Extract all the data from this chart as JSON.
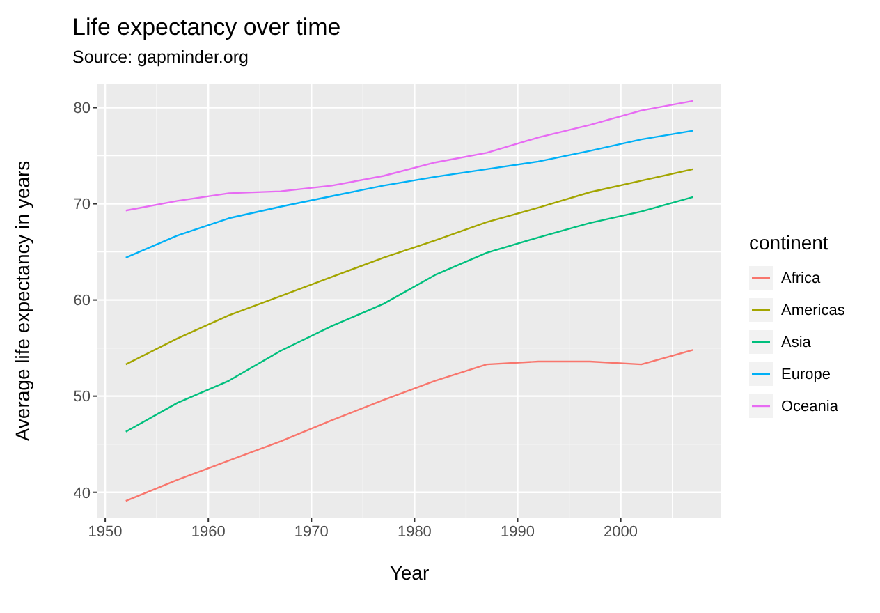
{
  "chart_data": {
    "type": "line",
    "title": "Life expectancy over time",
    "subtitle": "Source: gapminder.org",
    "xlabel": "Year",
    "ylabel": "Average life expectancy in years",
    "legend_title": "continent",
    "legend": "right",
    "grid": true,
    "marker": "none",
    "line_style": "solid",
    "x": [
      1952,
      1957,
      1962,
      1967,
      1972,
      1977,
      1982,
      1987,
      1992,
      1997,
      2002,
      2007
    ],
    "xlim": [
      1949.25,
      2009.75
    ],
    "xticks": [
      1950,
      1960,
      1970,
      1980,
      1990,
      2000
    ],
    "ylim": [
      37.3,
      82.5
    ],
    "yticks": [
      40,
      50,
      60,
      70,
      80
    ],
    "series": [
      {
        "name": "Africa",
        "color": "#f8766d",
        "values": [
          39.1,
          41.3,
          43.3,
          45.3,
          47.5,
          49.6,
          51.6,
          53.3,
          53.6,
          53.6,
          53.3,
          54.8
        ]
      },
      {
        "name": "Americas",
        "color": "#a3a500",
        "values": [
          53.3,
          56.0,
          58.4,
          60.4,
          62.4,
          64.4,
          66.2,
          68.1,
          69.6,
          71.2,
          72.4,
          73.6
        ]
      },
      {
        "name": "Asia",
        "color": "#00bf7d",
        "values": [
          46.3,
          49.3,
          51.6,
          54.7,
          57.3,
          59.6,
          62.6,
          64.9,
          66.5,
          68.0,
          69.2,
          70.7
        ]
      },
      {
        "name": "Europe",
        "color": "#00b0f6",
        "values": [
          64.4,
          66.7,
          68.5,
          69.7,
          70.8,
          71.9,
          72.8,
          73.6,
          74.4,
          75.5,
          76.7,
          77.6
        ]
      },
      {
        "name": "Oceania",
        "color": "#e76bf3",
        "values": [
          69.3,
          70.3,
          71.1,
          71.3,
          71.9,
          72.9,
          74.3,
          75.3,
          76.9,
          78.2,
          79.7,
          80.7
        ]
      }
    ]
  }
}
